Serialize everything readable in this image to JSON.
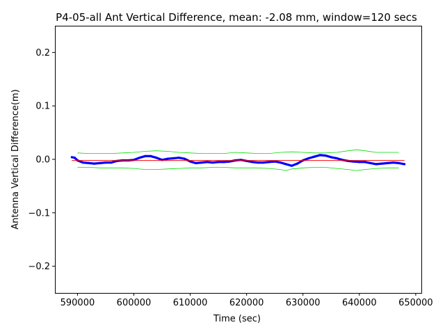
{
  "chart_data": {
    "type": "line",
    "title": "P4-05-all Ant Vertical Difference, mean: -2.08 mm, window=120 secs",
    "xlabel": "Time (sec)",
    "ylabel": "Antenna Vertical Difference(m)",
    "xlim": [
      586000,
      651000
    ],
    "ylim": [
      -0.25,
      0.25
    ],
    "xticks": [
      590000,
      600000,
      610000,
      620000,
      630000,
      640000,
      650000
    ],
    "xtick_labels": [
      "590000",
      "600000",
      "610000",
      "620000",
      "630000",
      "640000",
      "650000"
    ],
    "yticks": [
      -0.2,
      -0.1,
      0.0,
      0.1,
      0.2
    ],
    "ytick_labels": [
      "−0.2",
      "−0.1",
      "0.0",
      "0.1",
      "0.2"
    ],
    "grid": false,
    "colors": {
      "data": "#0000ff",
      "mean": "#ff0000",
      "envelope": "#00dd00"
    },
    "series": [
      {
        "role": "data",
        "x": [
          589000,
          589500,
          590000,
          590500,
          591000,
          592000,
          593000,
          594000,
          595000,
          596000,
          597000,
          598000,
          599000,
          600000,
          601000,
          602000,
          603000,
          604000,
          605000,
          606000,
          607000,
          608000,
          609000,
          610000,
          611000,
          612000,
          613000,
          614000,
          615000,
          616000,
          617000,
          618000,
          619000,
          620000,
          621000,
          622000,
          623000,
          624000,
          625000,
          626000,
          627000,
          628000,
          629000,
          630000,
          631000,
          632000,
          633000,
          634000,
          635000,
          636000,
          637000,
          638000,
          639000,
          640000,
          641000,
          642000,
          643000,
          644000,
          645000,
          646000,
          647000,
          648000
        ],
        "y": [
          0.004,
          0.003,
          -0.002,
          -0.004,
          -0.006,
          -0.007,
          -0.008,
          -0.007,
          -0.006,
          -0.006,
          -0.003,
          -0.002,
          -0.002,
          -0.001,
          0.003,
          0.006,
          0.006,
          0.003,
          -0.001,
          0.001,
          0.002,
          0.003,
          0.001,
          -0.004,
          -0.007,
          -0.006,
          -0.005,
          -0.006,
          -0.005,
          -0.005,
          -0.004,
          -0.002,
          -0.001,
          -0.003,
          -0.005,
          -0.006,
          -0.006,
          -0.005,
          -0.004,
          -0.006,
          -0.009,
          -0.012,
          -0.008,
          -0.002,
          0.002,
          0.005,
          0.008,
          0.007,
          0.004,
          0.002,
          -0.001,
          -0.003,
          -0.004,
          -0.005,
          -0.005,
          -0.007,
          -0.009,
          -0.008,
          -0.007,
          -0.006,
          -0.007,
          -0.009
        ]
      },
      {
        "role": "mean",
        "x": [
          589000,
          648000
        ],
        "y": [
          -0.00208,
          -0.00208
        ]
      },
      {
        "role": "envelope-upper",
        "x": [
          590000,
          592000,
          594000,
          596000,
          598000,
          600000,
          602000,
          604000,
          606000,
          608000,
          610000,
          612000,
          614000,
          616000,
          618000,
          620000,
          622000,
          624000,
          626000,
          628000,
          630000,
          632000,
          634000,
          636000,
          638000,
          639500,
          641000,
          643000,
          645000,
          647000
        ],
        "y": [
          0.012,
          0.011,
          0.011,
          0.011,
          0.012,
          0.013,
          0.015,
          0.016,
          0.015,
          0.013,
          0.012,
          0.011,
          0.011,
          0.011,
          0.013,
          0.012,
          0.011,
          0.011,
          0.013,
          0.014,
          0.013,
          0.012,
          0.012,
          0.013,
          0.016,
          0.018,
          0.016,
          0.013,
          0.013,
          0.013
        ]
      },
      {
        "role": "envelope-lower",
        "x": [
          590000,
          592000,
          594000,
          596000,
          598000,
          600000,
          602000,
          604000,
          606000,
          608000,
          610000,
          612000,
          614000,
          616000,
          618000,
          620000,
          622000,
          624000,
          626000,
          627000,
          628000,
          630000,
          632000,
          634000,
          636000,
          638000,
          639500,
          641000,
          643000,
          645000,
          647000
        ],
        "y": [
          -0.015,
          -0.015,
          -0.016,
          -0.016,
          -0.016,
          -0.017,
          -0.019,
          -0.019,
          -0.018,
          -0.017,
          -0.016,
          -0.016,
          -0.015,
          -0.015,
          -0.016,
          -0.016,
          -0.016,
          -0.017,
          -0.019,
          -0.021,
          -0.018,
          -0.016,
          -0.015,
          -0.015,
          -0.017,
          -0.019,
          -0.021,
          -0.019,
          -0.017,
          -0.016,
          -0.016
        ]
      }
    ]
  }
}
